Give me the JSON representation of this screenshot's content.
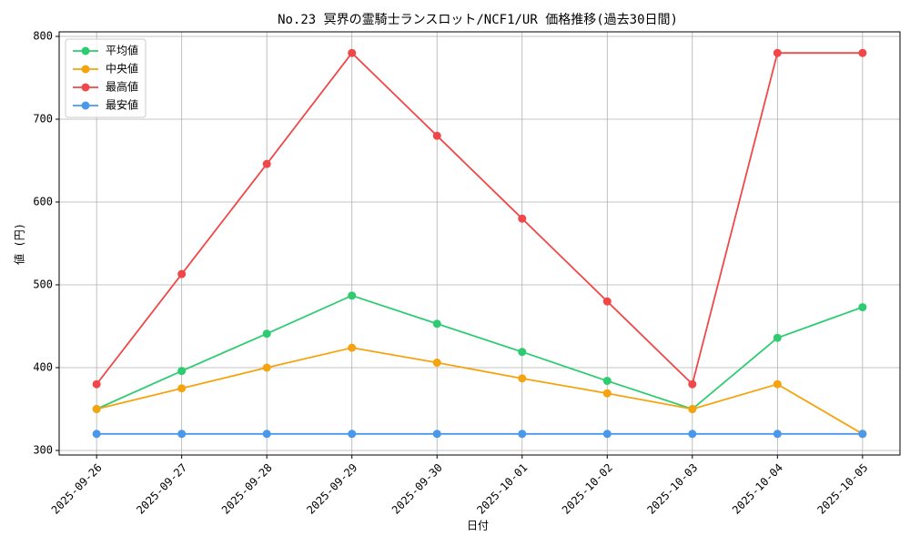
{
  "chart_data": {
    "type": "line",
    "title": "No.23 冥界の霊騎士ランスロット/NCF1/UR 価格推移(過去30日間)",
    "xlabel": "日付",
    "ylabel": "値 (円)",
    "categories": [
      "2025-09-26",
      "2025-09-27",
      "2025-09-28",
      "2025-09-29",
      "2025-09-30",
      "2025-10-01",
      "2025-10-02",
      "2025-10-03",
      "2025-10-04",
      "2025-10-05"
    ],
    "series": [
      {
        "name": "平均値",
        "color": "#2ecc71",
        "values": [
          350,
          396,
          441,
          487,
          453,
          419,
          384,
          350,
          436,
          473
        ]
      },
      {
        "name": "中央値",
        "color": "#f5a30f",
        "values": [
          350,
          375,
          400,
          424,
          406,
          387,
          369,
          350,
          380,
          320
        ]
      },
      {
        "name": "最高値",
        "color": "#f04848",
        "values": [
          380,
          513,
          646,
          780,
          680,
          580,
          480,
          380,
          780,
          780
        ]
      },
      {
        "name": "最安値",
        "color": "#4a98ec",
        "values": [
          320,
          320,
          320,
          320,
          320,
          320,
          320,
          320,
          320,
          320
        ]
      }
    ],
    "ylim": [
      294.5,
      805.5
    ],
    "yticks": [
      300,
      400,
      500,
      600,
      700,
      800
    ],
    "grid": true,
    "legend": "upper-left"
  }
}
